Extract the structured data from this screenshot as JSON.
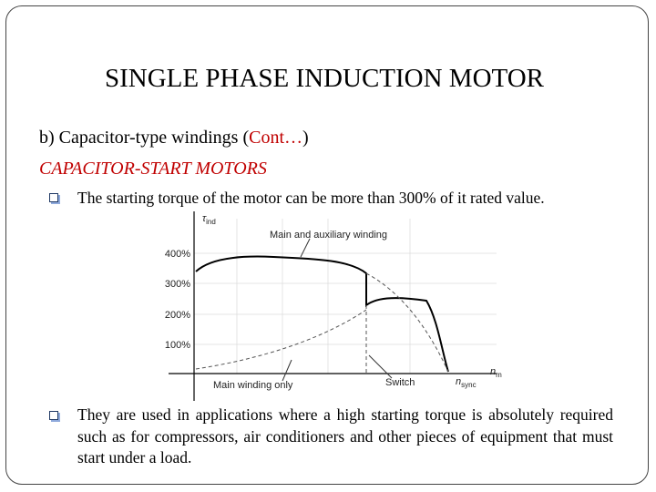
{
  "title": "SINGLE PHASE INDUCTION MOTOR",
  "heading": {
    "before": "b) Capacitor-type windings (",
    "highlight": "Cont…",
    "after": ")"
  },
  "subheading": "CAPACITOR-START MOTORS",
  "bullets": [
    "The starting torque of the motor can be more than 300% of it rated value.",
    "They are used in applications where a high starting torque is absolutely required such as for compressors, air conditioners and other pieces of equipment that must start under a load."
  ],
  "figure": {
    "y_axis_label": {
      "symbol": "τ",
      "subscript": "ind"
    },
    "x_axis_label": {
      "symbol": "n",
      "subscript": "m"
    },
    "sync_label": {
      "symbol": "n",
      "subscript": "sync"
    },
    "y_tick_labels": [
      "400%",
      "300%",
      "200%",
      "100%"
    ],
    "annotations": {
      "upper": "Main and auxiliary winding",
      "lower": "Main winding only",
      "switch": "Switch"
    }
  }
}
